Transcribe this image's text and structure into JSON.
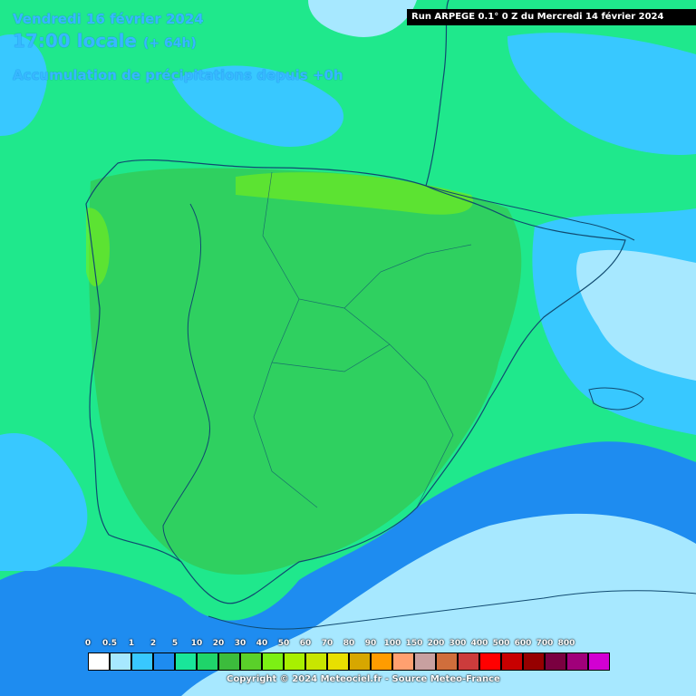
{
  "header": {
    "date": "Vendredi 16 février 2024",
    "time": "17:00 locale",
    "lead": "(+ 64h)",
    "variable": "Accumulation de précipitations depuis +0h"
  },
  "run_info": "Run ARPEGE 0.1° 0 Z du Mercredi 14 février 2024",
  "legend": {
    "levels": [
      "0",
      "0.5",
      "1",
      "2",
      "5",
      "10",
      "20",
      "30",
      "40",
      "50",
      "60",
      "70",
      "80",
      "90",
      "100",
      "150",
      "200",
      "300",
      "400",
      "500",
      "600",
      "700",
      "800"
    ],
    "colors": [
      "#ffffff",
      "#a7e8ff",
      "#38c8ff",
      "#1e8cf0",
      "#19e69a",
      "#1fd46a",
      "#3cbc3c",
      "#5ad02a",
      "#7cf014",
      "#a8f000",
      "#c8e600",
      "#e8e000",
      "#d7a700",
      "#ff9c00",
      "#ffa070",
      "#c8a0a0",
      "#d06e3c",
      "#cc3c3c",
      "#ff0000",
      "#c80000",
      "#960000",
      "#7a0040",
      "#a0007a",
      "#d200d2"
    ]
  },
  "copyright": "Copyright © 2024 Meteociel.fr - Source Meteo-France"
}
